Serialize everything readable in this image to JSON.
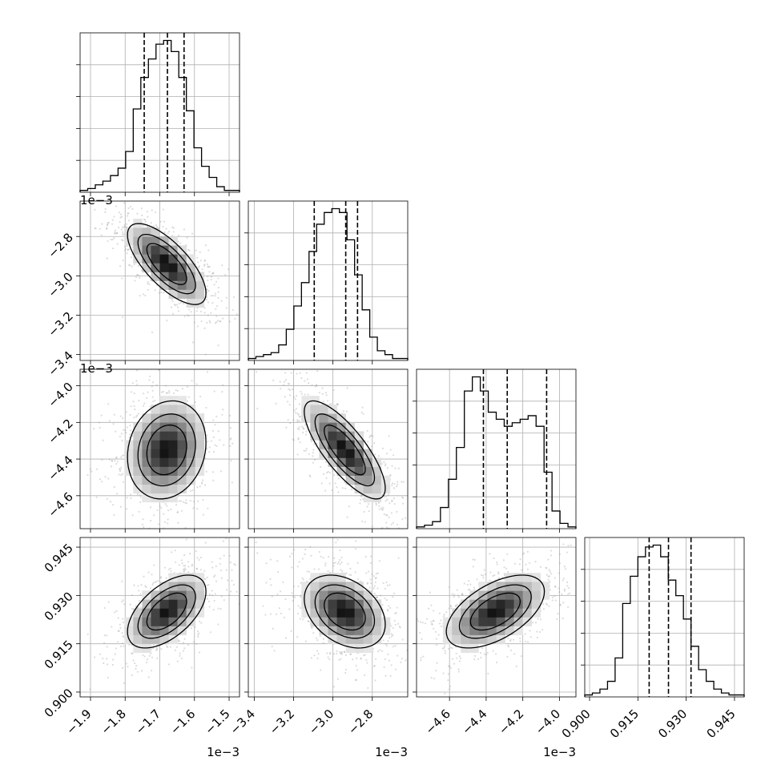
{
  "chart_data": {
    "type": "corner",
    "title": "",
    "grid": true,
    "parameters": [
      {
        "range": [
          -1.93,
          -1.47
        ],
        "ticks": [
          -1.9,
          -1.8,
          -1.7,
          -1.6,
          -1.5
        ],
        "tick_labels": [
          "−1.9",
          "−1.8",
          "−1.7",
          "−1.6",
          "−1.5"
        ],
        "offset_label": "1e−3",
        "quantiles": [
          -1.745,
          -1.678,
          -1.63
        ],
        "mode": -1.68,
        "sd": 0.055
      },
      {
        "range": [
          -3.43,
          -2.62
        ],
        "ticks": [
          -3.4,
          -3.2,
          -3.0,
          -2.8
        ],
        "tick_labels": [
          "−3.4",
          "−3.2",
          "−3.0",
          "−2.8"
        ],
        "offset_label": "1e−3",
        "quantiles": [
          -3.095,
          -2.935,
          -2.875
        ],
        "mode": -2.94,
        "sd": 0.1
      },
      {
        "range": [
          -4.78,
          -3.91
        ],
        "ticks": [
          -4.6,
          -4.4,
          -4.2,
          -4.0
        ],
        "tick_labels": [
          "−4.6",
          "−4.4",
          "−4.2",
          "−4.0"
        ],
        "offset_label": "1e−3",
        "quantiles": [
          -4.415,
          -4.285,
          -4.07
        ],
        "mode": -4.35,
        "sd": 0.13
      },
      {
        "range": [
          0.8985,
          0.948
        ],
        "ticks": [
          0.9,
          0.915,
          0.93,
          0.945
        ],
        "tick_labels": [
          "0.900",
          "0.915",
          "0.930",
          "0.945"
        ],
        "offset_label": "",
        "quantiles": [
          0.9185,
          0.9245,
          0.9315
        ],
        "mode": 0.925,
        "sd": 0.0055
      }
    ],
    "histograms": [
      [
        1,
        2,
        4,
        6,
        9,
        13,
        22,
        45,
        62,
        72,
        80,
        82,
        76,
        62,
        44,
        24,
        14,
        8,
        3,
        1,
        1
      ],
      [
        1,
        2,
        3,
        4,
        8,
        16,
        28,
        40,
        56,
        70,
        76,
        78,
        76,
        62,
        44,
        26,
        12,
        5,
        3,
        1,
        1
      ],
      [
        1,
        2,
        4,
        12,
        28,
        46,
        78,
        86,
        78,
        66,
        62,
        58,
        60,
        62,
        64,
        58,
        32,
        10,
        3,
        1
      ],
      [
        1,
        2,
        4,
        8,
        20,
        48,
        62,
        72,
        77,
        78,
        72,
        60,
        52,
        40,
        26,
        14,
        8,
        4,
        2,
        1,
        1
      ]
    ],
    "correlations": {
      "1-0": -0.72,
      "2-0": 0.15,
      "2-1": -0.78,
      "3-0": 0.55,
      "3-1": -0.35,
      "3-2": 0.55
    }
  }
}
